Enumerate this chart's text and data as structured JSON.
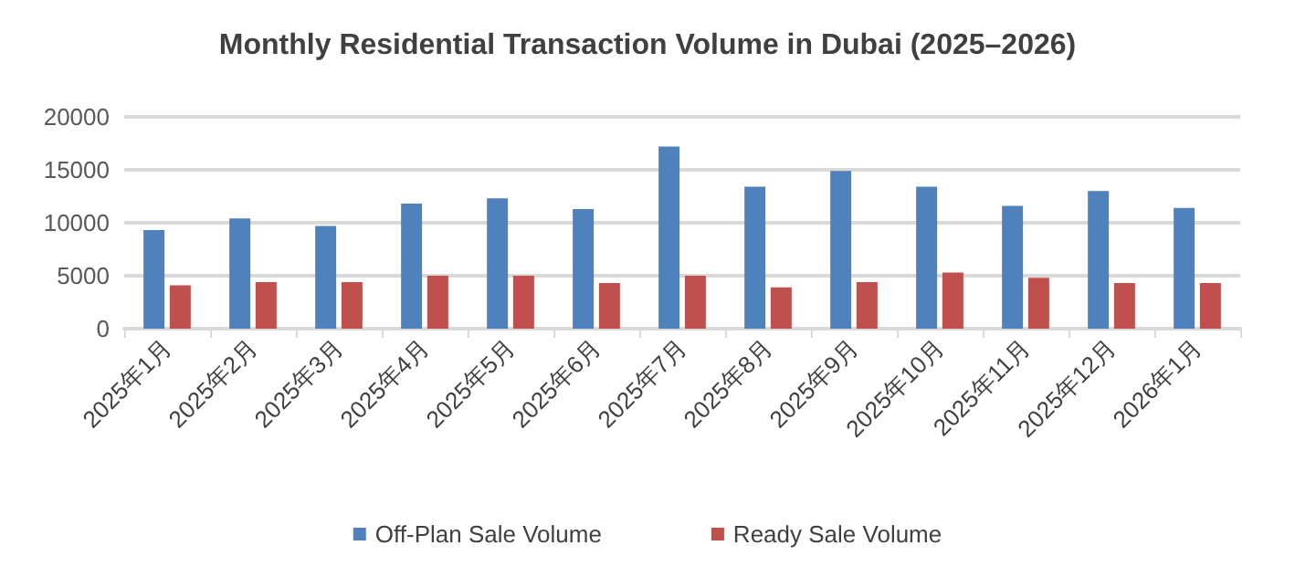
{
  "chart_data": {
    "type": "bar",
    "title": "Monthly Residential Transaction Volume in Dubai (2025–2026)",
    "categories": [
      "2025年1月",
      "2025年2月",
      "2025年3月",
      "2025年4月",
      "2025年5月",
      "2025年6月",
      "2025年7月",
      "2025年8月",
      "2025年9月",
      "2025年10月",
      "2025年11月",
      "2025年12月",
      "2026年1月"
    ],
    "series": [
      {
        "name": "Off-Plan Sale Volume",
        "color": "#4f81bd",
        "values": [
          9300,
          10400,
          9700,
          11800,
          12300,
          11300,
          17200,
          13400,
          14900,
          13400,
          11600,
          13000,
          11400
        ]
      },
      {
        "name": "Ready Sale Volume",
        "color": "#c0504d",
        "values": [
          4100,
          4400,
          4400,
          5000,
          5000,
          4300,
          5000,
          3900,
          4400,
          5300,
          4800,
          4300,
          4300
        ]
      }
    ],
    "ylim": [
      0,
      20000
    ],
    "yticks": [
      0,
      5000,
      10000,
      15000,
      20000
    ],
    "grid": "y",
    "legend": "bottom"
  }
}
